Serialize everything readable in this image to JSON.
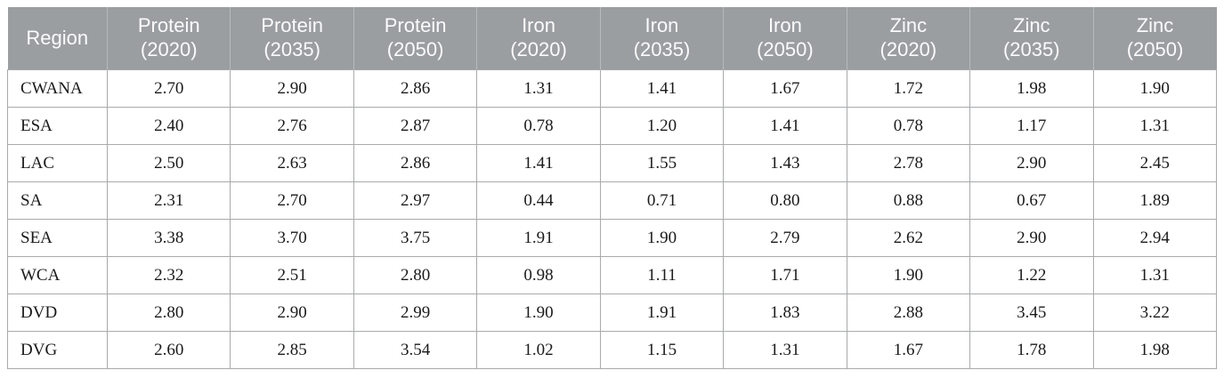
{
  "table": {
    "columns": [
      {
        "label": "Region",
        "year": ""
      },
      {
        "label": "Protein",
        "year": "(2020)"
      },
      {
        "label": "Protein",
        "year": "(2035)"
      },
      {
        "label": "Protein",
        "year": "(2050)"
      },
      {
        "label": "Iron",
        "year": "(2020)"
      },
      {
        "label": "Iron",
        "year": "(2035)"
      },
      {
        "label": "Iron",
        "year": "(2050)"
      },
      {
        "label": "Zinc",
        "year": "(2020)"
      },
      {
        "label": "Zinc",
        "year": "(2035)"
      },
      {
        "label": "Zinc",
        "year": "(2050)"
      }
    ],
    "rows": [
      {
        "region": "CWANA",
        "values": [
          "2.70",
          "2.90",
          "2.86",
          "1.31",
          "1.41",
          "1.67",
          "1.72",
          "1.98",
          "1.90"
        ]
      },
      {
        "region": "ESA",
        "values": [
          "2.40",
          "2.76",
          "2.87",
          "0.78",
          "1.20",
          "1.41",
          "0.78",
          "1.17",
          "1.31"
        ]
      },
      {
        "region": "LAC",
        "values": [
          "2.50",
          "2.63",
          "2.86",
          "1.41",
          "1.55",
          "1.43",
          "2.78",
          "2.90",
          "2.45"
        ]
      },
      {
        "region": "SA",
        "values": [
          "2.31",
          "2.70",
          "2.97",
          "0.44",
          "0.71",
          "0.80",
          "0.88",
          "0.67",
          "1.89"
        ]
      },
      {
        "region": "SEA",
        "values": [
          "3.38",
          "3.70",
          "3.75",
          "1.91",
          "1.90",
          "2.79",
          "2.62",
          "2.90",
          "2.94"
        ]
      },
      {
        "region": "WCA",
        "values": [
          "2.32",
          "2.51",
          "2.80",
          "0.98",
          "1.11",
          "1.71",
          "1.90",
          "1.22",
          "1.31"
        ]
      },
      {
        "region": "DVD",
        "values": [
          "2.80",
          "2.90",
          "2.99",
          "1.90",
          "1.91",
          "1.83",
          "2.88",
          "3.45",
          "3.22"
        ]
      },
      {
        "region": "DVG",
        "values": [
          "2.60",
          "2.85",
          "3.54",
          "1.02",
          "1.15",
          "1.31",
          "1.67",
          "1.78",
          "1.98"
        ]
      }
    ],
    "colors": {
      "header_bg": "#9a9ea1",
      "header_text": "#fbfbfb",
      "header_separator": "#b8babc",
      "body_border": "#a8aaac",
      "body_text": "#1a1a1a"
    }
  }
}
